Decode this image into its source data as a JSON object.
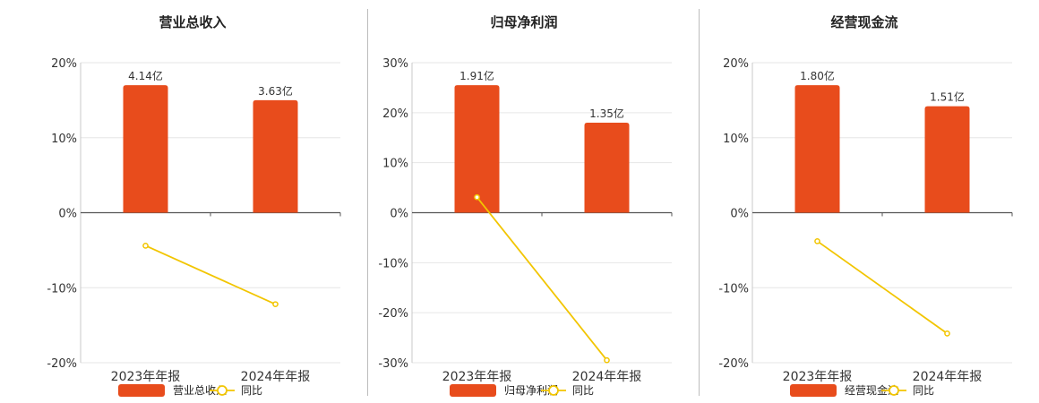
{
  "colors": {
    "bar": "#e84c1c",
    "line": "#f2c500"
  },
  "legend": {
    "yoy_label": "同比"
  },
  "chart_data": [
    {
      "type": "bar",
      "title": "营业总收入",
      "categories": [
        "2023年年报",
        "2024年年报"
      ],
      "bar_values": [
        17.0,
        15.0
      ],
      "bar_labels": [
        "4.14亿",
        "3.63亿"
      ],
      "series": [
        {
          "name": "营业总收入",
          "type": "bar",
          "values": [
            17.0,
            15.0
          ]
        },
        {
          "name": "同比",
          "type": "line",
          "values": [
            -4.4,
            -12.2
          ]
        }
      ],
      "ylim": [
        -20,
        20
      ],
      "yticks": [
        "20%",
        "10%",
        "0%",
        "-10%",
        "-20%"
      ],
      "ytick_values": [
        20,
        10,
        0,
        -10,
        -20
      ]
    },
    {
      "type": "bar",
      "title": "归母净利润",
      "categories": [
        "2023年年报",
        "2024年年报"
      ],
      "bar_values": [
        25.5,
        18.0
      ],
      "bar_labels": [
        "1.91亿",
        "1.35亿"
      ],
      "series": [
        {
          "name": "归母净利润",
          "type": "bar",
          "values": [
            25.5,
            18.0
          ]
        },
        {
          "name": "同比",
          "type": "line",
          "values": [
            3.1,
            -29.5
          ]
        }
      ],
      "ylim": [
        -30,
        30
      ],
      "yticks": [
        "30%",
        "20%",
        "10%",
        "0%",
        "-10%",
        "-20%",
        "-30%"
      ],
      "ytick_values": [
        30,
        20,
        10,
        0,
        -10,
        -20,
        -30
      ]
    },
    {
      "type": "bar",
      "title": "经营现金流",
      "categories": [
        "2023年年报",
        "2024年年报"
      ],
      "bar_values": [
        17.0,
        14.2
      ],
      "bar_labels": [
        "1.80亿",
        "1.51亿"
      ],
      "series": [
        {
          "name": "经营现金流",
          "type": "bar",
          "values": [
            17.0,
            14.2
          ]
        },
        {
          "name": "同比",
          "type": "line",
          "values": [
            -3.8,
            -16.1
          ]
        }
      ],
      "ylim": [
        -20,
        20
      ],
      "yticks": [
        "20%",
        "10%",
        "0%",
        "-10%",
        "-20%"
      ],
      "ytick_values": [
        20,
        10,
        0,
        -10,
        -20
      ]
    }
  ]
}
